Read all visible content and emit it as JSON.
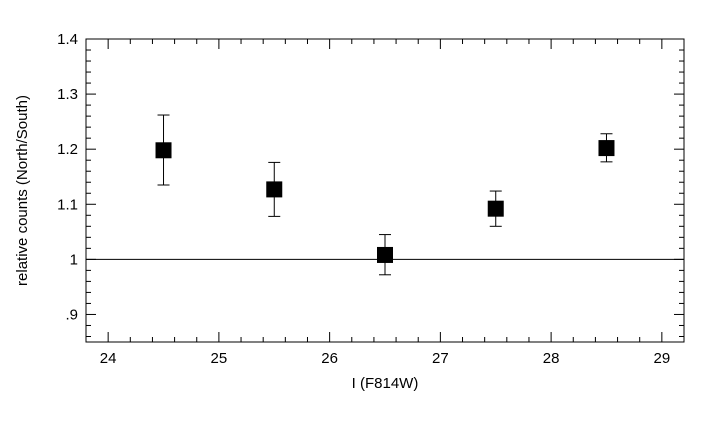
{
  "chart_data": {
    "type": "scatter",
    "title": "",
    "xlabel": "I (F814W)",
    "ylabel": "relative counts (North/South)",
    "xlim": [
      23.8,
      29.2
    ],
    "ylim": [
      0.85,
      1.4
    ],
    "x_major_ticks": [
      24,
      25,
      26,
      27,
      28,
      29
    ],
    "x_minor_step": 0.2,
    "y_major_ticks": [
      0.9,
      1.0,
      1.1,
      1.2,
      1.3,
      1.4
    ],
    "y_tick_labels": [
      ".9",
      "1",
      "1.1",
      "1.2",
      "1.3",
      "1.4"
    ],
    "y_minor_step": 0.02,
    "reference_line": 1.0,
    "grid": false,
    "marker": "filled-square",
    "points": [
      {
        "x": 24.5,
        "y": 1.198,
        "err_low": 1.135,
        "err_high": 1.262
      },
      {
        "x": 25.5,
        "y": 1.127,
        "err_low": 1.078,
        "err_high": 1.176
      },
      {
        "x": 26.5,
        "y": 1.008,
        "err_low": 0.972,
        "err_high": 1.045
      },
      {
        "x": 27.5,
        "y": 1.092,
        "err_low": 1.06,
        "err_high": 1.124
      },
      {
        "x": 28.5,
        "y": 1.202,
        "err_low": 1.177,
        "err_high": 1.228
      }
    ],
    "colors": {
      "axis": "#000000",
      "marker": "#000000"
    }
  }
}
